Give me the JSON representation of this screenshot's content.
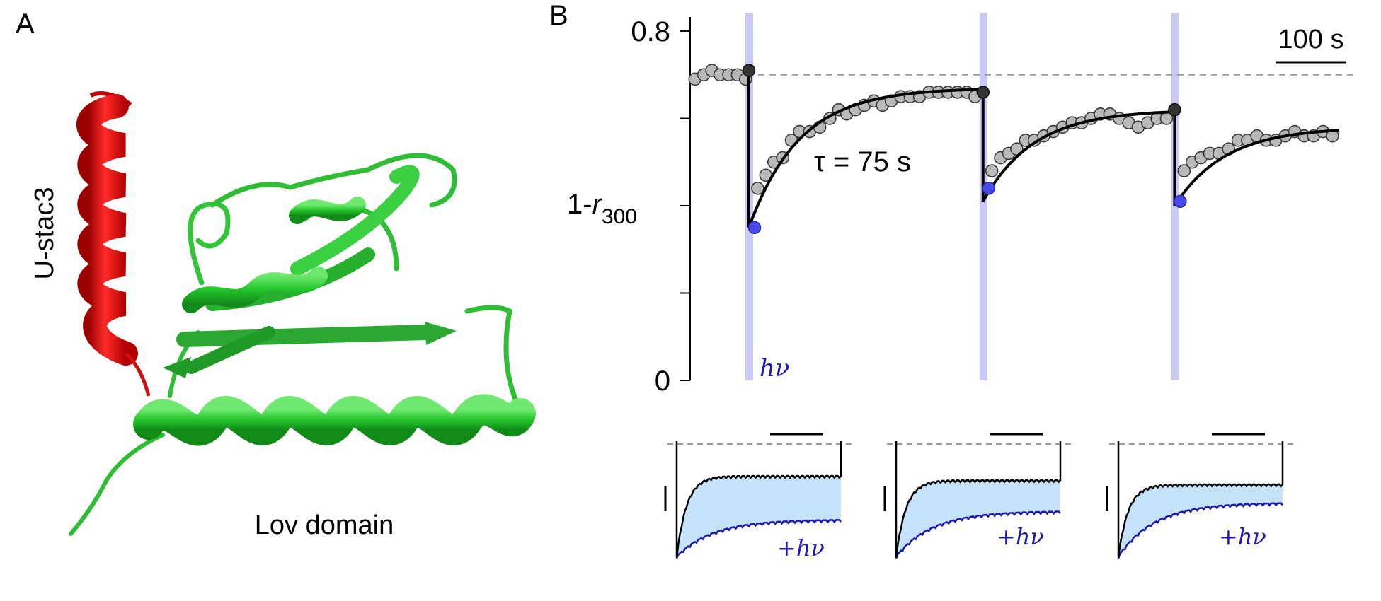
{
  "panel_a": {
    "letter": "A",
    "helix_label": "U-stac3",
    "domain_label": "Lov domain",
    "colors": {
      "helix": "#e01515",
      "domain": "#22c32a"
    }
  },
  "panel_b": {
    "letter": "B",
    "scale_bar_label": "100 s",
    "tau_label": "τ = 75 s",
    "light_label": "hν",
    "inset_light_label": "+hν",
    "colors": {
      "points": "#b9b9b9",
      "stim": "#c9c9f3",
      "fit": "#000000",
      "highlight": "#4a4ae8",
      "inset_fill": "#c5e2fa",
      "inset_light_trace": "#1a1ab0"
    }
  },
  "chart_data": {
    "type": "scatter",
    "ylabel": "1-r300",
    "ylabel_parts": {
      "base": "1-",
      "italic": "r",
      "sub": "300"
    },
    "ylim": [
      0,
      0.8
    ],
    "ytick_labels": [
      "0.8",
      "0"
    ],
    "xlim": [
      0,
      960
    ],
    "x_unit": "s",
    "reference_level": 0.7,
    "light_pulses_s": [
      85,
      432,
      716
    ],
    "tau_s": 75,
    "fits": [
      {
        "start_s": 85,
        "end_s": 432,
        "y0": 0.35,
        "yinf": 0.67
      },
      {
        "start_s": 432,
        "end_s": 716,
        "y0": 0.41,
        "yinf": 0.62
      },
      {
        "start_s": 716,
        "end_s": 960,
        "y0": 0.4,
        "yinf": 0.58
      }
    ],
    "highlight_points": [
      {
        "x": 85,
        "y": 0.71,
        "kind": "pre"
      },
      {
        "x": 85,
        "y": 0.35,
        "kind": "post"
      },
      {
        "x": 432,
        "y": 0.66,
        "kind": "pre"
      },
      {
        "x": 432,
        "y": 0.44,
        "kind": "post"
      },
      {
        "x": 716,
        "y": 0.62,
        "kind": "pre"
      },
      {
        "x": 716,
        "y": 0.41,
        "kind": "post"
      }
    ],
    "series": [
      {
        "x": [
          5,
          18,
          30,
          42,
          55,
          68,
          80,
          98,
          110,
          122,
          135,
          148,
          160,
          175,
          190,
          205,
          218,
          230,
          243,
          256,
          270,
          283,
          296,
          310,
          324,
          338,
          352,
          366,
          380,
          394,
          408,
          420
        ],
        "y": [
          0.69,
          0.7,
          0.71,
          0.7,
          0.7,
          0.7,
          0.69,
          0.44,
          0.47,
          0.5,
          0.51,
          0.55,
          0.57,
          0.57,
          0.58,
          0.6,
          0.62,
          0.61,
          0.62,
          0.63,
          0.64,
          0.63,
          0.64,
          0.65,
          0.65,
          0.65,
          0.66,
          0.66,
          0.66,
          0.66,
          0.66,
          0.65
        ]
      },
      {
        "x": [
          445,
          458,
          470,
          482,
          495,
          508,
          522,
          536,
          550,
          564,
          578,
          592,
          606,
          620,
          634,
          648,
          662,
          676,
          690,
          704
        ],
        "y": [
          0.48,
          0.51,
          0.52,
          0.53,
          0.55,
          0.55,
          0.56,
          0.57,
          0.58,
          0.59,
          0.59,
          0.6,
          0.61,
          0.61,
          0.6,
          0.59,
          0.58,
          0.59,
          0.6,
          0.6
        ]
      },
      {
        "x": [
          730,
          742,
          755,
          768,
          782,
          796,
          810,
          824,
          838,
          852,
          866,
          880,
          894,
          908,
          922,
          936,
          950
        ],
        "y": [
          0.48,
          0.5,
          0.51,
          0.52,
          0.52,
          0.53,
          0.55,
          0.55,
          0.56,
          0.55,
          0.55,
          0.56,
          0.57,
          0.56,
          0.56,
          0.57,
          0.56
        ]
      }
    ]
  }
}
